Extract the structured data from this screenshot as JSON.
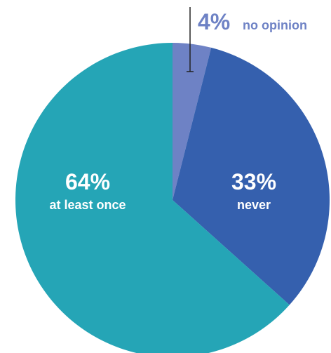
{
  "chart_data": {
    "type": "pie",
    "title": "",
    "start_angle_deg": 0,
    "direction": "clockwise",
    "slices": [
      {
        "label": "no opinion",
        "value_label": "4%",
        "value": 4,
        "color": "#6e82c5",
        "label_placement": "outside-top-right",
        "label_color": "#6e82c5"
      },
      {
        "label": "never",
        "value_label": "33%",
        "value": 33,
        "color": "#3560ae",
        "label_placement": "inside",
        "label_color": "#ffffff"
      },
      {
        "label": "at least once",
        "value_label": "64%",
        "value": 64,
        "color": "#25a5b6",
        "label_placement": "inside",
        "label_color": "#ffffff"
      }
    ],
    "background": "#ffffff"
  }
}
